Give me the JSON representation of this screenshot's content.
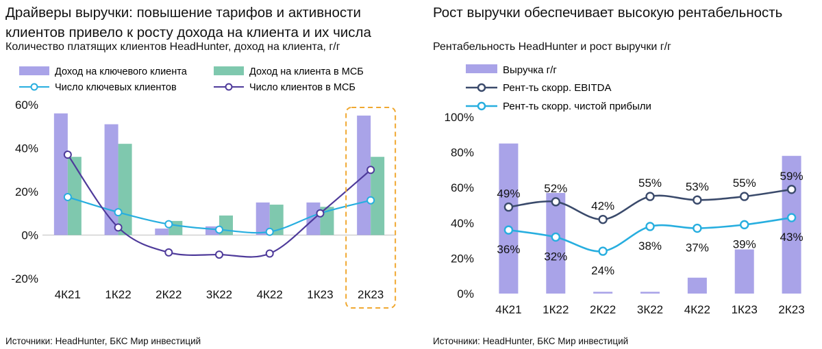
{
  "left": {
    "title_line1": "Драйверы выручки: повышение тарифов и активности",
    "title_line2": "клиентов привело к росту дохода на клиента и их числа",
    "subtitle": "Количество платящих клиентов HeadHunter, доход на клиента, г/г",
    "source": "Источники: HeadHunter, БКС Мир инвестиций"
  },
  "right": {
    "title": "Рост выручки обеспечивает высокую рентабельность",
    "subtitle": "Рентабельность HeadHunter и рост выручки г/г",
    "source": "Источники: HeadHunter, БКС Мир инвестиций"
  },
  "colors": {
    "purple_bar": "#A9A3E8",
    "green_bar": "#7FC8AE",
    "cyan_line": "#27AEDF",
    "purple_line": "#4E3A9A",
    "navy_line": "#3A4A6B",
    "highlight": "#F0A830"
  },
  "chart_data": [
    {
      "type": "bar",
      "categories": [
        "4К21",
        "1К22",
        "2К22",
        "3К22",
        "4К22",
        "1К23",
        "2К23"
      ],
      "series": [
        {
          "name": "Доход на ключевого клиента",
          "kind": "bar",
          "values": [
            56,
            51,
            3,
            4,
            15,
            15,
            55
          ]
        },
        {
          "name": "Доход на клиента в МСБ",
          "kind": "bar",
          "values": [
            36,
            42,
            6.5,
            9,
            14,
            13,
            36
          ]
        },
        {
          "name": "Число ключевых клиентов",
          "kind": "line",
          "values": [
            17.5,
            10.5,
            5,
            2.5,
            1.5,
            10,
            16
          ]
        },
        {
          "name": "Число клиентов в МСБ",
          "kind": "line",
          "values": [
            37,
            3.5,
            -8,
            -9,
            -8.5,
            10,
            30
          ]
        }
      ],
      "yticks": [
        "60%",
        "40%",
        "20%",
        "0%",
        "-20%"
      ],
      "ylim": [
        -20,
        60
      ],
      "highlight_category": "2К23",
      "legend": "top, two columns"
    },
    {
      "type": "bar",
      "categories": [
        "4К21",
        "1К22",
        "2К22",
        "3К22",
        "4К22",
        "1К23",
        "2К23"
      ],
      "series": [
        {
          "name": "Выручка г/г",
          "kind": "bar",
          "values": [
            85,
            57,
            1,
            1,
            9,
            25,
            78
          ]
        },
        {
          "name": "Рент-ть скорр. EBITDA",
          "kind": "line",
          "values": [
            49,
            52,
            42,
            55,
            53,
            55,
            59
          ],
          "labels": [
            "49%",
            "52%",
            "42%",
            "55%",
            "53%",
            "55%",
            "59%"
          ]
        },
        {
          "name": "Рент-ть скорр. чистой прибыли",
          "kind": "line",
          "values": [
            36,
            32,
            24,
            38,
            37,
            39,
            43
          ],
          "labels": [
            "36%",
            "32%",
            "24%",
            "38%",
            "37%",
            "39%",
            "43%"
          ]
        }
      ],
      "yticks": [
        "100%",
        "80%",
        "60%",
        "40%",
        "20%",
        "0%"
      ],
      "ylim": [
        0,
        100
      ],
      "legend": "top-left, one column"
    }
  ]
}
